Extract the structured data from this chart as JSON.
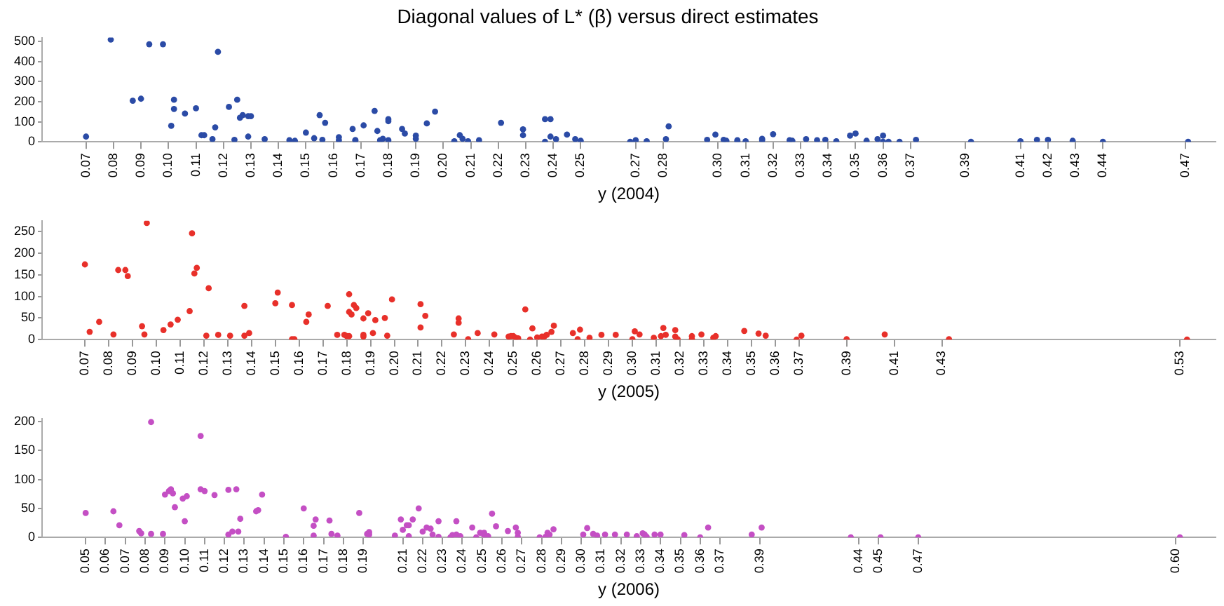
{
  "chart_data": [
    {
      "type": "scatter",
      "title": "Diagonal values of L* (β) versus direct estimates",
      "xlabel": "y (2004)",
      "marker": "circle",
      "xlim": [
        0.054,
        0.481
      ],
      "ylim": [
        0,
        520
      ],
      "yticks": [
        0,
        100,
        200,
        300,
        400,
        500
      ],
      "xticks": [
        0.07,
        0.08,
        0.09,
        {
          "value": 0.1,
          "label": "0.10"
        },
        0.11,
        0.12,
        0.13,
        0.14,
        0.15,
        0.16,
        0.17,
        0.18,
        0.19,
        {
          "value": 0.2,
          "label": "0.20"
        },
        0.21,
        0.22,
        0.23,
        0.24,
        0.25,
        0.27,
        0.28,
        {
          "value": 0.3,
          "label": "0.30"
        },
        0.31,
        0.32,
        0.33,
        0.34,
        0.35,
        0.36,
        0.37,
        0.39,
        0.41,
        0.42,
        0.43,
        0.44,
        0.47
      ],
      "series": [
        {
          "color": "#2b4ba6",
          "x": [
            0.07,
            0.079,
            0.087,
            0.09,
            0.093,
            0.098,
            0.101,
            0.102,
            0.102,
            0.106,
            0.11,
            0.112,
            0.113,
            0.116,
            0.117,
            0.118,
            0.122,
            0.124,
            0.125,
            0.126,
            0.127,
            0.129,
            0.13,
            0.129,
            0.135,
            0.144,
            0.146,
            0.15,
            0.153,
            0.155,
            0.156,
            0.157,
            0.162,
            0.162,
            0.167,
            0.168,
            0.168,
            0.171,
            0.175,
            0.176,
            0.177,
            0.178,
            0.18,
            0.18,
            0.18,
            0.185,
            0.186,
            0.19,
            0.19,
            0.194,
            0.197,
            0.204,
            0.206,
            0.207,
            0.209,
            0.213,
            0.221,
            0.229,
            0.229,
            0.237,
            0.239,
            0.237,
            0.239,
            0.241,
            0.245,
            0.248,
            0.25,
            0.268,
            0.27,
            0.274,
            0.281,
            0.282,
            0.296,
            0.299,
            0.302,
            0.303,
            0.307,
            0.307,
            0.31,
            0.316,
            0.316,
            0.32,
            0.326,
            0.327,
            0.332,
            0.336,
            0.339,
            0.343,
            0.348,
            0.35,
            0.354,
            0.358,
            0.36,
            0.36,
            0.362,
            0.366,
            0.372,
            0.392,
            0.41,
            0.416,
            0.42,
            0.429,
            0.44,
            0.471
          ],
          "values": [
            26,
            510,
            205,
            215,
            487,
            487,
            80,
            210,
            164,
            141,
            167,
            33,
            33,
            13,
            72,
            449,
            174,
            10,
            210,
            120,
            133,
            128,
            128,
            26,
            13,
            8,
            5,
            46,
            18,
            133,
            10,
            95,
            23,
            8,
            64,
            8,
            8,
            82,
            154,
            54,
            8,
            15,
            113,
            103,
            8,
            64,
            41,
            31,
            15,
            92,
            151,
            3,
            33,
            15,
            3,
            8,
            95,
            62,
            33,
            113,
            113,
            0,
            26,
            13,
            36,
            13,
            5,
            0,
            8,
            3,
            13,
            77,
            10,
            36,
            10,
            5,
            8,
            3,
            3,
            15,
            8,
            38,
            8,
            5,
            13,
            8,
            10,
            3,
            31,
            41,
            5,
            13,
            31,
            0,
            0,
            0,
            10,
            0,
            3,
            10,
            10,
            5,
            0,
            0
          ]
        }
      ]
    },
    {
      "type": "scatter",
      "xlabel": "y (2005)",
      "marker": "circle",
      "xlim": [
        0.052,
        0.545
      ],
      "ylim": [
        0,
        275
      ],
      "yticks": [
        0,
        50,
        100,
        150,
        200,
        250
      ],
      "xticks": [
        0.07,
        0.08,
        0.09,
        {
          "value": 0.1,
          "label": "0.10"
        },
        0.11,
        0.12,
        0.13,
        0.14,
        0.15,
        0.16,
        0.17,
        0.18,
        0.19,
        {
          "value": 0.2,
          "label": "0.20"
        },
        0.21,
        0.22,
        0.23,
        0.24,
        0.25,
        0.26,
        0.27,
        0.28,
        0.29,
        {
          "value": 0.3,
          "label": "0.30"
        },
        0.31,
        0.32,
        0.33,
        0.34,
        0.35,
        0.36,
        0.37,
        0.39,
        0.41,
        0.43,
        0.53
      ],
      "series": [
        {
          "color": "#e8302a",
          "x": [
            0.07,
            0.072,
            0.076,
            0.082,
            0.084,
            0.087,
            0.088,
            0.094,
            0.095,
            0.096,
            0.103,
            0.106,
            0.109,
            0.114,
            0.115,
            0.116,
            0.117,
            0.121,
            0.122,
            0.126,
            0.131,
            0.137,
            0.137,
            0.139,
            0.15,
            0.151,
            0.157,
            0.157,
            0.158,
            0.163,
            0.164,
            0.172,
            0.176,
            0.179,
            0.18,
            0.181,
            0.181,
            0.181,
            0.182,
            0.183,
            0.184,
            0.187,
            0.187,
            0.187,
            0.189,
            0.191,
            0.192,
            0.196,
            0.197,
            0.199,
            0.211,
            0.211,
            0.213,
            0.225,
            0.227,
            0.227,
            0.231,
            0.235,
            0.242,
            0.248,
            0.249,
            0.25,
            0.251,
            0.252,
            0.255,
            0.257,
            0.258,
            0.26,
            0.262,
            0.263,
            0.264,
            0.266,
            0.267,
            0.275,
            0.277,
            0.278,
            0.282,
            0.287,
            0.293,
            0.3,
            0.301,
            0.303,
            0.309,
            0.312,
            0.313,
            0.314,
            0.318,
            0.318,
            0.319,
            0.325,
            0.325,
            0.329,
            0.334,
            0.335,
            0.347,
            0.353,
            0.356,
            0.369,
            0.371,
            0.39,
            0.406,
            0.433,
            0.533
          ],
          "values": [
            174,
            18,
            41,
            12,
            161,
            161,
            147,
            31,
            12,
            270,
            22,
            35,
            46,
            66,
            246,
            153,
            166,
            9,
            119,
            11,
            9,
            9,
            78,
            15,
            84,
            109,
            80,
            1,
            1,
            41,
            58,
            78,
            11,
            11,
            8,
            8,
            64,
            105,
            58,
            80,
            73,
            7,
            11,
            49,
            61,
            15,
            45,
            50,
            9,
            93,
            82,
            28,
            55,
            12,
            49,
            39,
            1,
            15,
            12,
            7,
            8,
            8,
            4,
            3,
            70,
            0,
            26,
            5,
            7,
            7,
            11,
            18,
            32,
            15,
            1,
            23,
            4,
            11,
            11,
            1,
            19,
            12,
            4,
            8,
            27,
            11,
            22,
            7,
            1,
            1,
            8,
            12,
            4,
            8,
            20,
            14,
            9,
            0,
            9,
            1,
            12,
            1,
            0
          ]
        }
      ]
    },
    {
      "type": "scatter",
      "xlabel": "y (2006)",
      "marker": "circle",
      "xlim": [
        0.028,
        0.62
      ],
      "ylim": [
        0,
        205
      ],
      "yticks": [
        0,
        50,
        100,
        150,
        200
      ],
      "xticks": [
        0.05,
        0.06,
        0.07,
        0.08,
        0.09,
        {
          "value": 0.1,
          "label": "0.10"
        },
        0.11,
        0.12,
        0.13,
        0.14,
        0.15,
        0.16,
        0.17,
        0.18,
        0.19,
        0.21,
        0.22,
        0.23,
        0.24,
        0.25,
        0.26,
        0.27,
        0.28,
        0.29,
        {
          "value": 0.3,
          "label": "0.30"
        },
        0.31,
        0.32,
        0.33,
        0.34,
        0.35,
        0.36,
        0.37,
        0.39,
        0.44,
        0.45,
        0.47,
        {
          "value": 0.6,
          "label": "0.60"
        }
      ],
      "series": [
        {
          "color": "#c44fc4",
          "x": [
            0.05,
            0.064,
            0.067,
            0.077,
            0.078,
            0.083,
            0.083,
            0.089,
            0.09,
            0.092,
            0.093,
            0.094,
            0.095,
            0.099,
            0.1,
            0.101,
            0.108,
            0.108,
            0.11,
            0.115,
            0.122,
            0.122,
            0.124,
            0.126,
            0.127,
            0.128,
            0.136,
            0.137,
            0.139,
            0.151,
            0.16,
            0.165,
            0.165,
            0.166,
            0.173,
            0.174,
            0.177,
            0.188,
            0.192,
            0.193,
            0.193,
            0.206,
            0.209,
            0.21,
            0.212,
            0.213,
            0.213,
            0.215,
            0.218,
            0.22,
            0.222,
            0.224,
            0.225,
            0.228,
            0.228,
            0.234,
            0.235,
            0.237,
            0.237,
            0.239,
            0.245,
            0.247,
            0.249,
            0.251,
            0.251,
            0.253,
            0.255,
            0.257,
            0.263,
            0.267,
            0.268,
            0.268,
            0.279,
            0.282,
            0.283,
            0.284,
            0.286,
            0.301,
            0.303,
            0.306,
            0.308,
            0.312,
            0.317,
            0.323,
            0.328,
            0.331,
            0.332,
            0.333,
            0.337,
            0.34,
            0.352,
            0.36,
            0.364,
            0.386,
            0.391,
            0.436,
            0.451,
            0.47,
            0.602
          ],
          "values": [
            42,
            45,
            21,
            11,
            7,
            6,
            199,
            6,
            74,
            80,
            83,
            76,
            52,
            67,
            28,
            71,
            175,
            83,
            80,
            73,
            5,
            82,
            10,
            83,
            10,
            32,
            45,
            47,
            74,
            1,
            50,
            20,
            3,
            31,
            29,
            6,
            3,
            42,
            6,
            9,
            5,
            3,
            31,
            13,
            21,
            21,
            2,
            31,
            50,
            10,
            17,
            15,
            5,
            28,
            1,
            0,
            4,
            28,
            5,
            2,
            17,
            0,
            8,
            8,
            4,
            2,
            41,
            19,
            11,
            17,
            1,
            8,
            0,
            1,
            8,
            5,
            14,
            5,
            16,
            6,
            3,
            5,
            5,
            5,
            2,
            7,
            5,
            1,
            5,
            5,
            4,
            0,
            17,
            5,
            17,
            0,
            0,
            0,
            0
          ]
        }
      ]
    }
  ]
}
